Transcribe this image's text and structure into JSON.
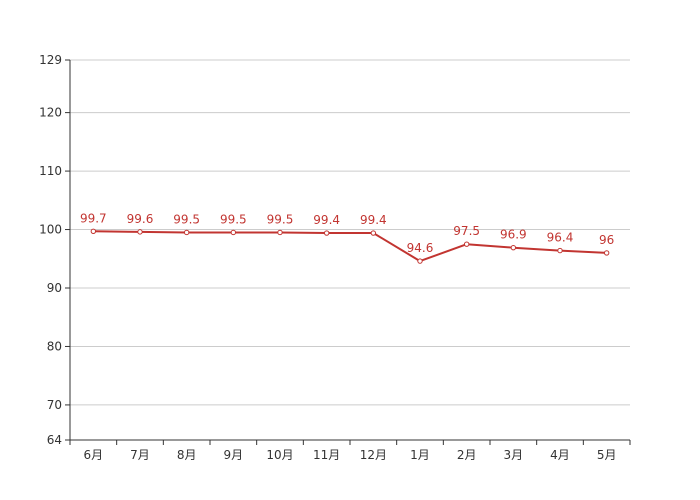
{
  "chart_data": {
    "type": "line",
    "categories": [
      "6月",
      "7月",
      "8月",
      "9月",
      "10月",
      "11月",
      "12月",
      "1月",
      "2月",
      "3月",
      "4月",
      "5月"
    ],
    "series": [
      {
        "values": [
          99.7,
          99.6,
          99.5,
          99.5,
          99.5,
          99.4,
          99.4,
          94.6,
          97.5,
          96.9,
          96.4,
          96
        ],
        "value_labels": [
          "99.7",
          "99.6",
          "99.5",
          "99.5",
          "99.5",
          "99.4",
          "99.4",
          "94.6",
          "97.5",
          "96.9",
          "96.4",
          "96"
        ],
        "color": "#c23531"
      }
    ],
    "ylim": [
      64,
      129
    ],
    "yticks": [
      64,
      70,
      80,
      90,
      100,
      110,
      120,
      129
    ],
    "ytick_labels": [
      "64",
      "70",
      "80",
      "90",
      "100",
      "110",
      "120",
      "129"
    ],
    "grid": true,
    "grid_color": "#cccccc",
    "axis_color": "#333333"
  }
}
